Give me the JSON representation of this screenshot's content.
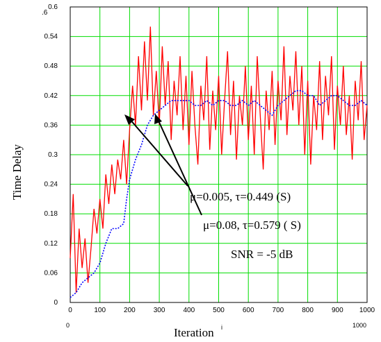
{
  "chart_data": {
    "type": "line",
    "xlabel": "Iteration",
    "xlabel_sub": "i",
    "ylabel": "Time Delay",
    "xlim": [
      0,
      1000
    ],
    "ylim": [
      0,
      0.6
    ],
    "x_ticks": [
      "0",
      "100",
      "200",
      "300",
      "400",
      "500",
      "600",
      "700",
      "800",
      "900",
      "1000"
    ],
    "y_ticks": [
      "0",
      "0.06",
      "0.12",
      "0.18",
      "0.24",
      "0.3",
      "0.36",
      "0.42",
      "0.48",
      "0.54",
      "0.6"
    ],
    "y_top_stray": ".6",
    "x_range_start_label": "0",
    "x_range_end_label": "1000",
    "grid": true,
    "grid_color": "#00dd00",
    "series": [
      {
        "color": "#ff0000",
        "style": "solid",
        "points": [
          [
            0,
            0.09
          ],
          [
            10,
            0.22
          ],
          [
            20,
            0.02
          ],
          [
            30,
            0.15
          ],
          [
            40,
            0.07
          ],
          [
            50,
            0.13
          ],
          [
            60,
            0.04
          ],
          [
            70,
            0.11
          ],
          [
            80,
            0.19
          ],
          [
            90,
            0.14
          ],
          [
            100,
            0.21
          ],
          [
            110,
            0.15
          ],
          [
            120,
            0.26
          ],
          [
            130,
            0.2
          ],
          [
            140,
            0.28
          ],
          [
            150,
            0.22
          ],
          [
            160,
            0.29
          ],
          [
            170,
            0.25
          ],
          [
            180,
            0.33
          ],
          [
            190,
            0.24
          ],
          [
            200,
            0.35
          ],
          [
            210,
            0.44
          ],
          [
            220,
            0.36
          ],
          [
            230,
            0.5
          ],
          [
            240,
            0.39
          ],
          [
            250,
            0.53
          ],
          [
            260,
            0.41
          ],
          [
            270,
            0.56
          ],
          [
            280,
            0.38
          ],
          [
            290,
            0.47
          ],
          [
            300,
            0.36
          ],
          [
            310,
            0.52
          ],
          [
            320,
            0.4
          ],
          [
            330,
            0.49
          ],
          [
            340,
            0.33
          ],
          [
            350,
            0.45
          ],
          [
            360,
            0.38
          ],
          [
            370,
            0.5
          ],
          [
            380,
            0.35
          ],
          [
            390,
            0.46
          ],
          [
            400,
            0.32
          ],
          [
            410,
            0.47
          ],
          [
            420,
            0.36
          ],
          [
            430,
            0.28
          ],
          [
            440,
            0.44
          ],
          [
            450,
            0.37
          ],
          [
            460,
            0.5
          ],
          [
            470,
            0.31
          ],
          [
            480,
            0.43
          ],
          [
            490,
            0.35
          ],
          [
            500,
            0.46
          ],
          [
            510,
            0.3
          ],
          [
            520,
            0.41
          ],
          [
            530,
            0.51
          ],
          [
            540,
            0.34
          ],
          [
            550,
            0.45
          ],
          [
            560,
            0.29
          ],
          [
            570,
            0.42
          ],
          [
            580,
            0.36
          ],
          [
            590,
            0.48
          ],
          [
            600,
            0.33
          ],
          [
            610,
            0.44
          ],
          [
            620,
            0.3
          ],
          [
            630,
            0.5
          ],
          [
            640,
            0.38
          ],
          [
            650,
            0.27
          ],
          [
            660,
            0.43
          ],
          [
            670,
            0.35
          ],
          [
            680,
            0.47
          ],
          [
            690,
            0.32
          ],
          [
            700,
            0.45
          ],
          [
            710,
            0.37
          ],
          [
            720,
            0.52
          ],
          [
            730,
            0.34
          ],
          [
            740,
            0.46
          ],
          [
            750,
            0.39
          ],
          [
            760,
            0.51
          ],
          [
            770,
            0.36
          ],
          [
            780,
            0.48
          ],
          [
            790,
            0.3
          ],
          [
            800,
            0.45
          ],
          [
            810,
            0.28
          ],
          [
            820,
            0.42
          ],
          [
            830,
            0.35
          ],
          [
            840,
            0.49
          ],
          [
            850,
            0.33
          ],
          [
            860,
            0.46
          ],
          [
            870,
            0.38
          ],
          [
            880,
            0.5
          ],
          [
            890,
            0.31
          ],
          [
            900,
            0.44
          ],
          [
            910,
            0.36
          ],
          [
            920,
            0.48
          ],
          [
            930,
            0.34
          ],
          [
            940,
            0.42
          ],
          [
            950,
            0.29
          ],
          [
            960,
            0.45
          ],
          [
            970,
            0.37
          ],
          [
            980,
            0.49
          ],
          [
            990,
            0.33
          ],
          [
            1000,
            0.4
          ]
        ]
      },
      {
        "color": "#0000ff",
        "style": "dotted",
        "points": [
          [
            0,
            0.01
          ],
          [
            20,
            0.02
          ],
          [
            40,
            0.04
          ],
          [
            60,
            0.05
          ],
          [
            80,
            0.06
          ],
          [
            100,
            0.08
          ],
          [
            120,
            0.12
          ],
          [
            140,
            0.15
          ],
          [
            160,
            0.15
          ],
          [
            180,
            0.16
          ],
          [
            190,
            0.21
          ],
          [
            200,
            0.25
          ],
          [
            210,
            0.27
          ],
          [
            220,
            0.29
          ],
          [
            240,
            0.32
          ],
          [
            260,
            0.36
          ],
          [
            280,
            0.38
          ],
          [
            300,
            0.39
          ],
          [
            320,
            0.4
          ],
          [
            340,
            0.41
          ],
          [
            360,
            0.41
          ],
          [
            380,
            0.41
          ],
          [
            400,
            0.41
          ],
          [
            420,
            0.4
          ],
          [
            440,
            0.4
          ],
          [
            460,
            0.41
          ],
          [
            480,
            0.4
          ],
          [
            500,
            0.41
          ],
          [
            520,
            0.41
          ],
          [
            540,
            0.4
          ],
          [
            560,
            0.4
          ],
          [
            580,
            0.41
          ],
          [
            600,
            0.4
          ],
          [
            620,
            0.41
          ],
          [
            640,
            0.4
          ],
          [
            660,
            0.39
          ],
          [
            680,
            0.38
          ],
          [
            700,
            0.4
          ],
          [
            720,
            0.41
          ],
          [
            740,
            0.42
          ],
          [
            760,
            0.43
          ],
          [
            780,
            0.43
          ],
          [
            800,
            0.42
          ],
          [
            820,
            0.42
          ],
          [
            840,
            0.4
          ],
          [
            860,
            0.41
          ],
          [
            880,
            0.42
          ],
          [
            900,
            0.42
          ],
          [
            920,
            0.41
          ],
          [
            940,
            0.4
          ],
          [
            960,
            0.4
          ],
          [
            980,
            0.41
          ],
          [
            1000,
            0.4
          ]
        ]
      }
    ],
    "annotations": [
      {
        "text": "μ=0.005, τ=0.449 (S)"
      },
      {
        "text": "μ=0.08, τ=0.579 ( S)"
      },
      {
        "text": "SNR = -5 dB"
      }
    ]
  }
}
